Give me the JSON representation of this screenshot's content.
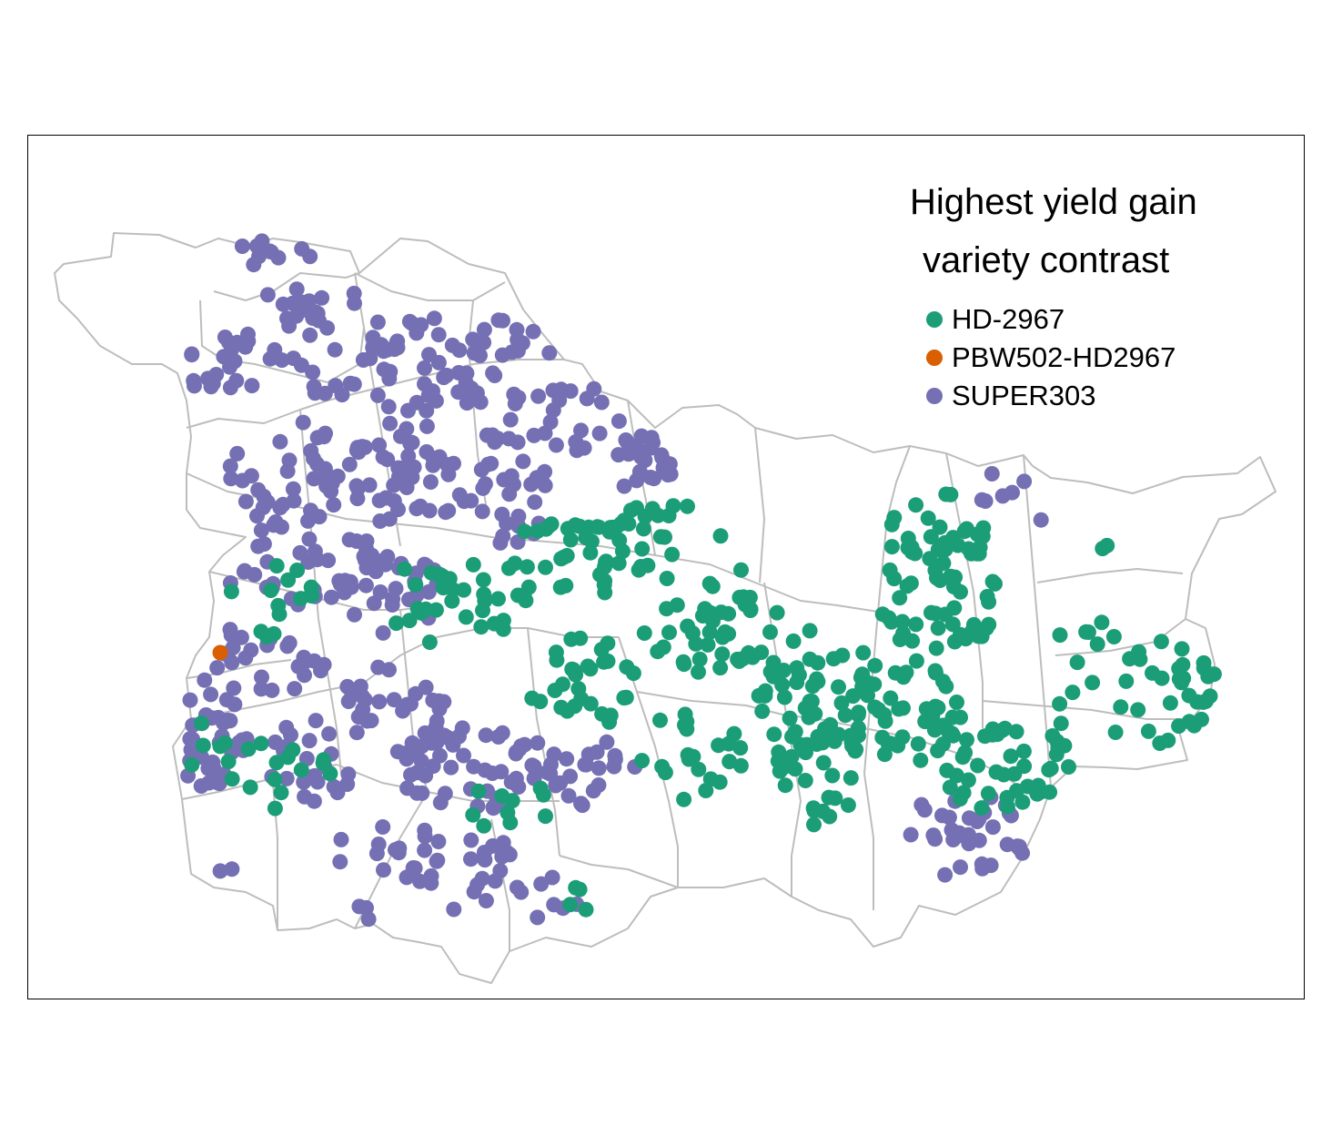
{
  "legend": {
    "title_line1": "Highest yield gain",
    "title_line2": "variety contrast",
    "items": [
      {
        "label": "HD-2967",
        "color": "#1b9e77"
      },
      {
        "label": "PBW502-HD2967",
        "color": "#d95f02"
      },
      {
        "label": "SUPER303",
        "color": "#7570b3"
      }
    ]
  },
  "map": {
    "boundary_color": "#bdbdbd",
    "background": "#ffffff",
    "frame_color": "#000000"
  }
}
